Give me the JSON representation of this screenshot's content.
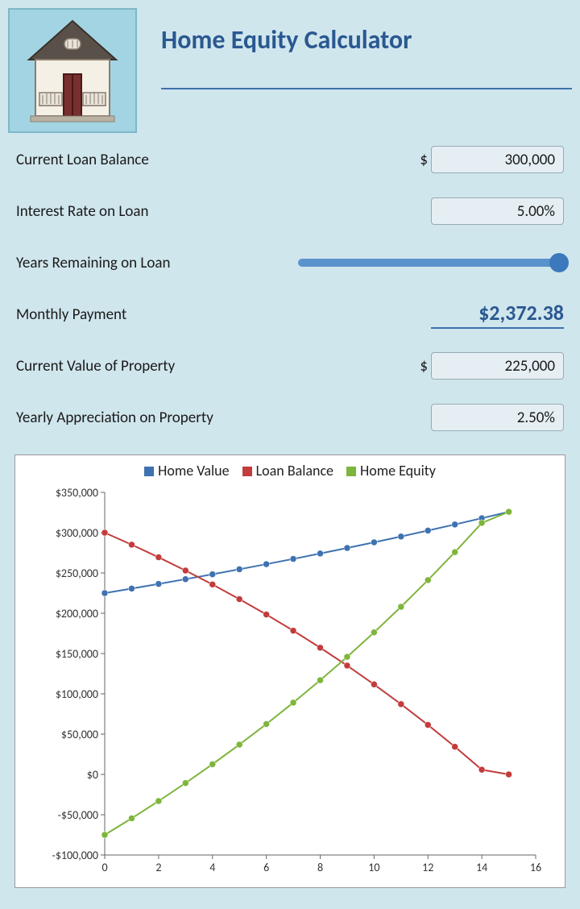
{
  "title": "Home Equity Calculator",
  "fields": {
    "loanBalance": {
      "label": "Current Loan Balance",
      "prefix": "$",
      "value": "300,000"
    },
    "interestRate": {
      "label": "Interest Rate on Loan",
      "value": "5.00%"
    },
    "yearsRemaining": {
      "label": "Years Remaining on Loan",
      "sliderPercent": 100
    },
    "monthlyPayment": {
      "label": "Monthly Payment",
      "value": "$2,372.38"
    },
    "propertyValue": {
      "label": "Current Value of Property",
      "prefix": "$",
      "value": "225,000"
    },
    "appreciation": {
      "label": "Yearly Appreciation on Property",
      "value": "2.50%"
    }
  },
  "chart": {
    "type": "line",
    "background": "#ffffff",
    "grid_color": "#cccccc",
    "axis_color": "#666666",
    "text_color": "#333333",
    "label_fontsize": 14,
    "xlim": [
      0,
      16
    ],
    "xtick_step": 2,
    "ylim": [
      -100000,
      350000
    ],
    "ytick_step": 50000,
    "y_prefix": "$",
    "marker": "circle",
    "marker_size": 4,
    "line_width": 2,
    "series": [
      {
        "name": "Home Value",
        "color": "#3e72b0",
        "x": [
          0,
          1,
          2,
          3,
          4,
          5,
          6,
          7,
          8,
          9,
          10,
          11,
          12,
          13,
          14,
          15
        ],
        "y": [
          225000,
          230625,
          236391,
          242300,
          248358,
          254567,
          260931,
          267454,
          274140,
          280994,
          288019,
          295219,
          302600,
          310165,
          317919,
          325867
        ]
      },
      {
        "name": "Loan Balance",
        "color": "#c33c3c",
        "x": [
          0,
          1,
          2,
          3,
          4,
          5,
          6,
          7,
          8,
          9,
          10,
          11,
          12,
          13,
          14,
          15
        ],
        "y": [
          300000,
          285113,
          269465,
          253016,
          235726,
          217552,
          198448,
          178365,
          157255,
          135064,
          111738,
          87218,
          61442,
          34345,
          5859,
          0
        ]
      },
      {
        "name": "Home Equity",
        "color": "#7eb53b",
        "x": [
          0,
          1,
          2,
          3,
          4,
          5,
          6,
          7,
          8,
          9,
          10,
          11,
          12,
          13,
          14,
          15
        ],
        "y": [
          -75000,
          -54488,
          -33074,
          -10716,
          12632,
          37015,
          62483,
          89089,
          116885,
          145930,
          176281,
          208001,
          241158,
          275820,
          312060,
          325867
        ]
      }
    ]
  },
  "colors": {
    "pageBg": "#d0e6ed",
    "iconBg": "#a3d4e3",
    "accent": "#2a5890",
    "inputBorder": "#98aab5",
    "inputBg": "#e5eff3",
    "sliderTrack": "#5a93cc",
    "sliderThumb": "#3b79bc"
  }
}
